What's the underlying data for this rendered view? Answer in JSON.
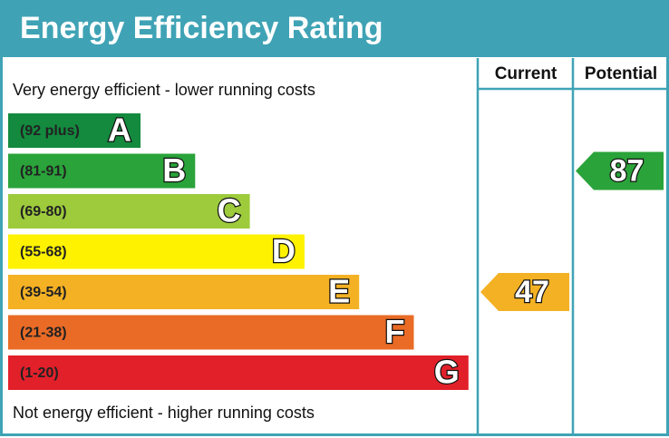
{
  "chart_data": {
    "type": "epc",
    "title": "Energy Efficiency Rating",
    "columns": [
      "Current",
      "Potential"
    ],
    "top_note": "Very energy efficient - lower running costs",
    "bottom_note": "Not energy efficient - higher running costs",
    "bands": [
      {
        "range": "(92 plus)",
        "letter": "A",
        "color": "#138a3e"
      },
      {
        "range": "(81-91)",
        "letter": "B",
        "color": "#2aa33a"
      },
      {
        "range": "(69-80)",
        "letter": "C",
        "color": "#9dcb3c"
      },
      {
        "range": "(55-68)",
        "letter": "D",
        "color": "#fff200"
      },
      {
        "range": "(39-54)",
        "letter": "E",
        "color": "#f4b124"
      },
      {
        "range": "(21-38)",
        "letter": "F",
        "color": "#ea6b26"
      },
      {
        "range": "(1-20)",
        "letter": "G",
        "color": "#e2202a"
      }
    ],
    "current": 47,
    "potential": 87
  }
}
